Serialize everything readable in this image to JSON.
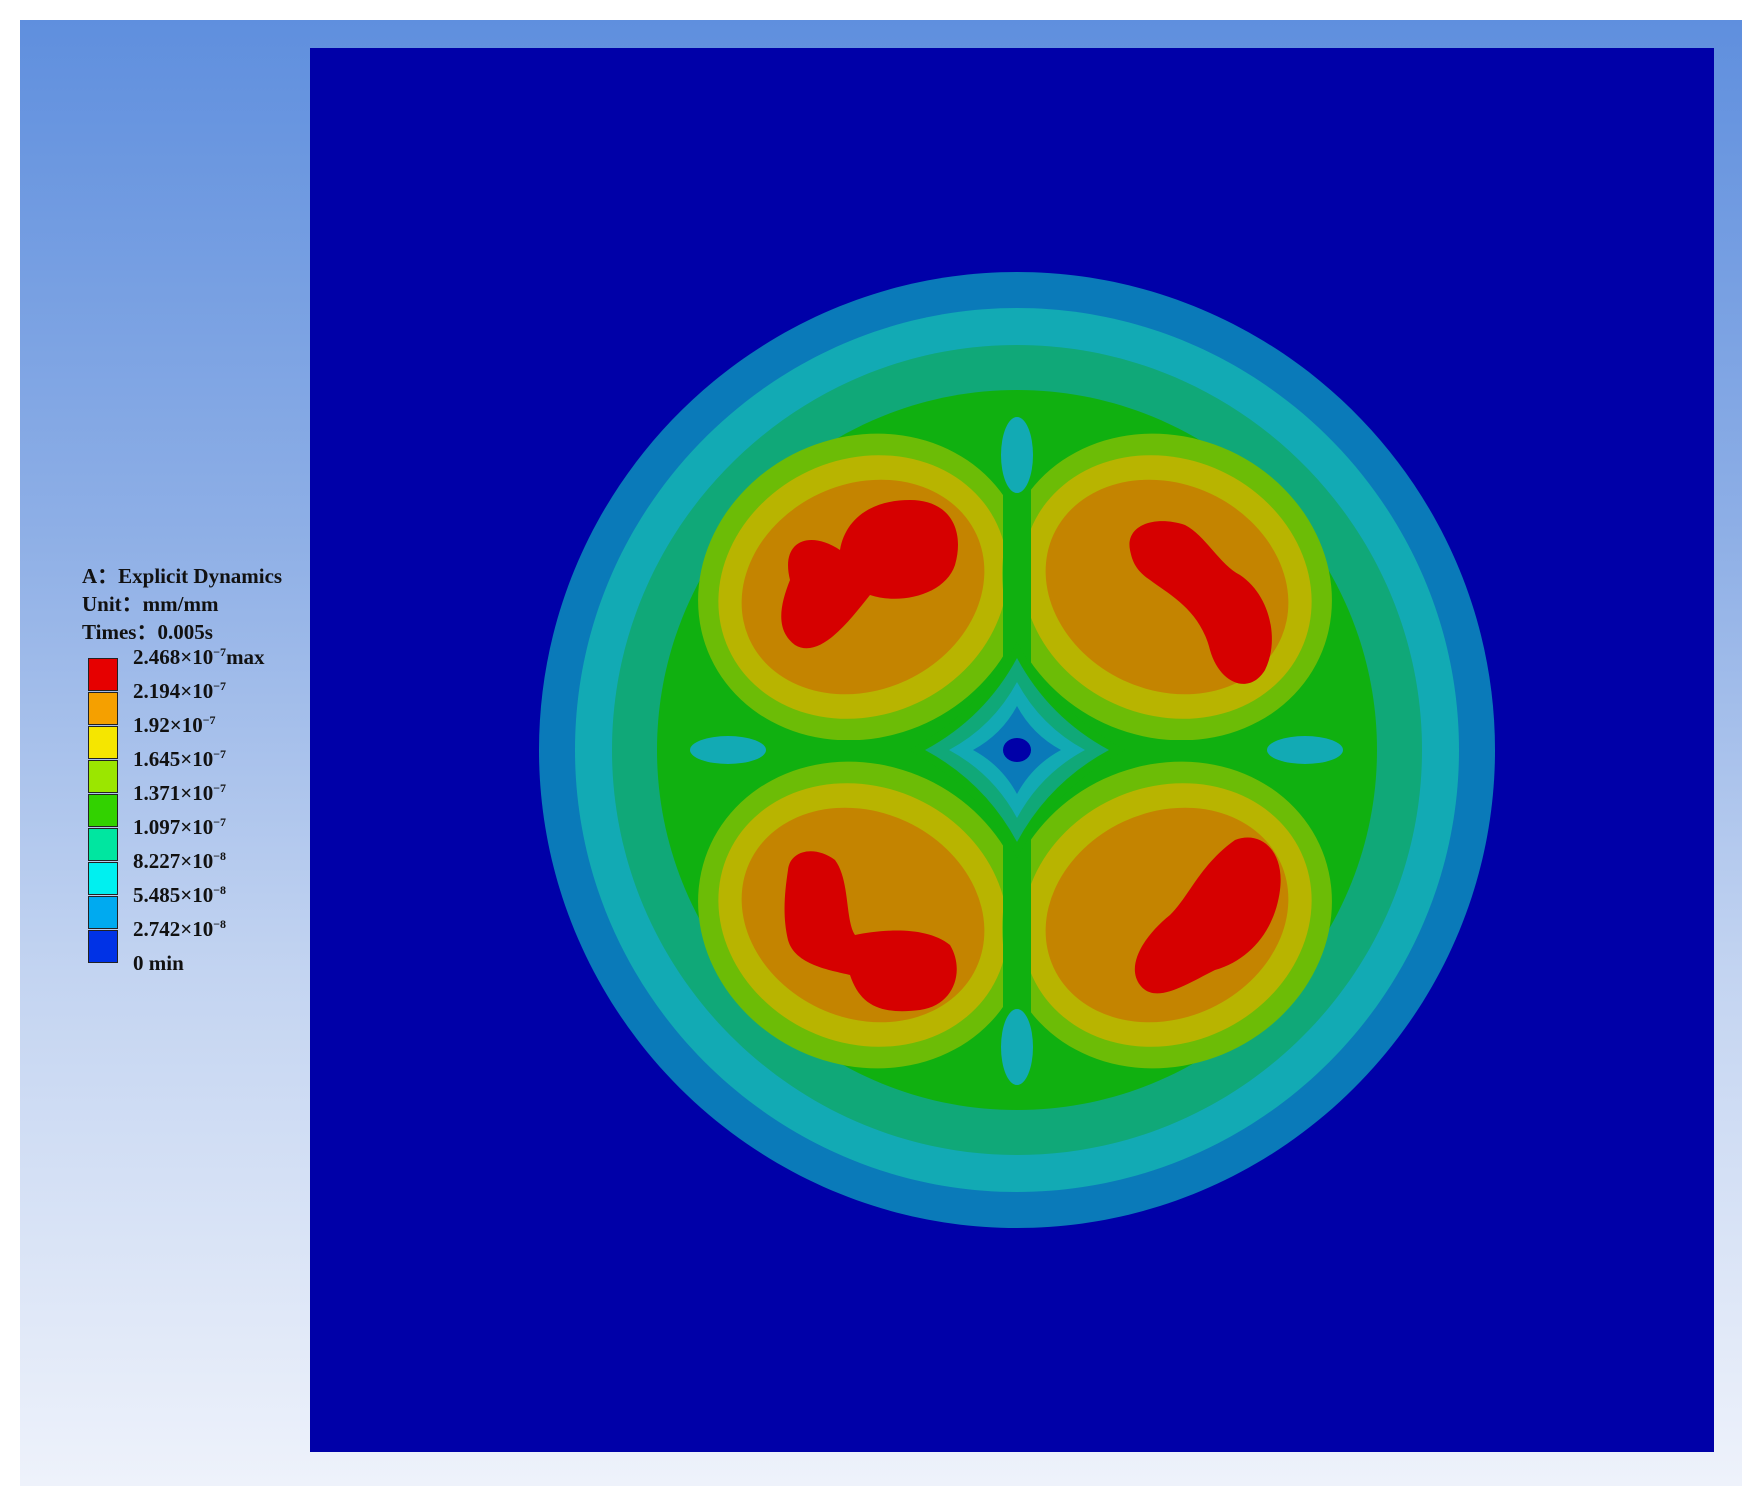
{
  "legend": {
    "analysis": "A：Explicit Dynamics",
    "unit": "Unit：mm/mm",
    "time": "Times：0.005s",
    "levels": [
      {
        "mantissa": "2.468×10",
        "exp": "−7",
        "suffix": "max",
        "color": "#e60000"
      },
      {
        "mantissa": "2.194×10",
        "exp": "−7",
        "suffix": "",
        "color": "#f5a000"
      },
      {
        "mantissa": "1.92×10",
        "exp": "−7",
        "suffix": "",
        "color": "#f5e600"
      },
      {
        "mantissa": "1.645×10",
        "exp": "−7",
        "suffix": "",
        "color": "#9be600"
      },
      {
        "mantissa": "1.371×10",
        "exp": "−7",
        "suffix": "",
        "color": "#32d200"
      },
      {
        "mantissa": "1.097×10",
        "exp": "−7",
        "suffix": "",
        "color": "#00e6a0"
      },
      {
        "mantissa": "8.227×10",
        "exp": "−8",
        "suffix": "",
        "color": "#00f0f0"
      },
      {
        "mantissa": "5.485×10",
        "exp": "−8",
        "suffix": "",
        "color": "#00aaf0"
      },
      {
        "mantissa": "2.742×10",
        "exp": "−8",
        "suffix": "",
        "color": "#0032e6"
      },
      {
        "mantissa": "0",
        "exp": "",
        "suffix": " min",
        "color": ""
      }
    ]
  },
  "contour_colors": {
    "background": "#0000a8",
    "band1": "#0a7ab9",
    "band2": "#12aab4",
    "band3": "#10a878",
    "band4": "#10b010",
    "band5": "#6cbc06",
    "band6": "#b8b400",
    "band7": "#c48400",
    "peak": "#d60000"
  }
}
